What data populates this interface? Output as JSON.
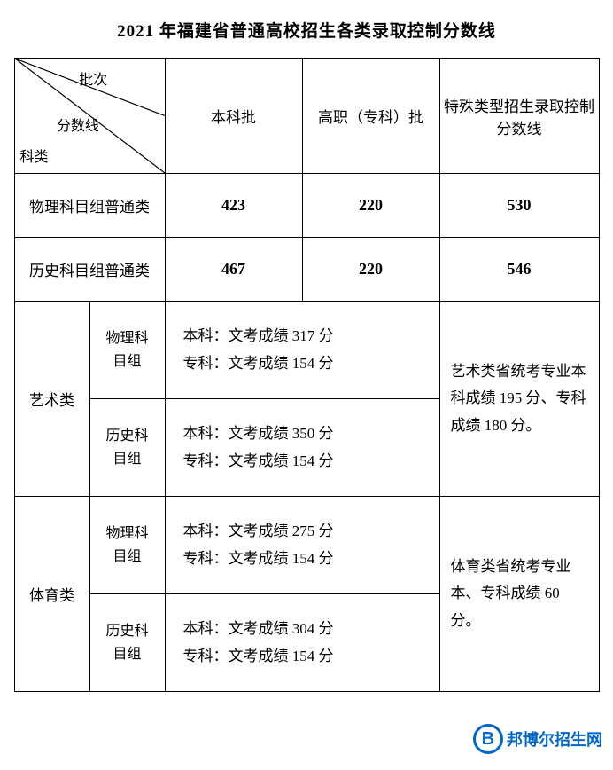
{
  "title": "2021 年福建省普通高校招生各类录取控制分数线",
  "header": {
    "diag": {
      "batch": "批次",
      "score": "分数线",
      "subject": "科类"
    },
    "col_benke": "本科批",
    "col_gaozhi": "高职（专科）批",
    "col_special": "特殊类型招生录取控制分数线"
  },
  "rows": {
    "physics_general": {
      "label": "物理科目组普通类",
      "benke": "423",
      "gaozhi": "220",
      "special": "530"
    },
    "history_general": {
      "label": "历史科目组普通类",
      "benke": "467",
      "gaozhi": "220",
      "special": "546"
    }
  },
  "art": {
    "label": "艺术类",
    "physics": {
      "sublabel": "物理科目组",
      "line1": "本科：文考成绩 317 分",
      "line2": "专科：文考成绩 154 分"
    },
    "history": {
      "sublabel": "历史科目组",
      "line1": "本科：文考成绩 350 分",
      "line2": "专科：文考成绩 154 分"
    },
    "note": "艺术类省统考专业本科成绩 195 分、专科成绩 180 分。"
  },
  "sport": {
    "label": "体育类",
    "physics": {
      "sublabel": "物理科目组",
      "line1": "本科：文考成绩 275 分",
      "line2": "专科：文考成绩 154 分"
    },
    "history": {
      "sublabel": "历史科目组",
      "line1": "本科：文考成绩 304 分",
      "line2": "专科：文考成绩 154 分"
    },
    "note": "体育类省统考专业本、专科成绩 60 分。"
  },
  "watermark": {
    "letter": "B",
    "text": "邦博尔招生网"
  },
  "style": {
    "border_color": "#000000",
    "title_fontsize": 19,
    "cell_fontsize": 17,
    "watermark_color": "#0066cc",
    "background_color": "#ffffff"
  }
}
